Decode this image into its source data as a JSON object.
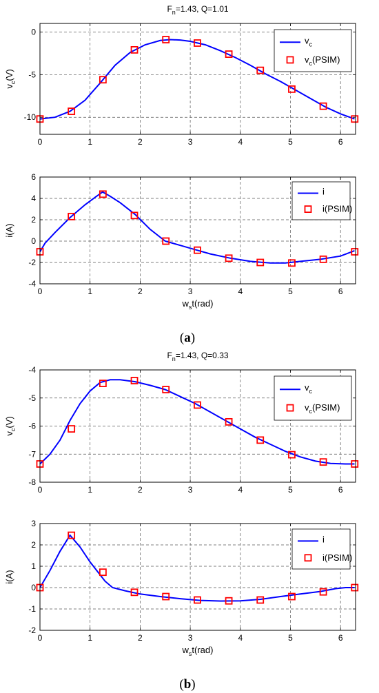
{
  "captions": {
    "a": "a",
    "b": "b"
  },
  "series_style": {
    "line_color": "#0000ff",
    "marker_color": "#ff0000",
    "marker": "square"
  },
  "chart_data": [
    {
      "id": "a-top",
      "type": "line",
      "title_main": "F",
      "title_sub": "n",
      "title_rest": "=1.43, Q=1.01",
      "ylabel_main": "v",
      "ylabel_sub": "c",
      "ylabel_rest": "(V)",
      "xlim": [
        0,
        6.3
      ],
      "ylim": [
        -12,
        1
      ],
      "xticks": [
        0,
        1,
        2,
        3,
        4,
        5,
        6
      ],
      "yticks": [
        0,
        -5,
        -10
      ],
      "grid": true,
      "legend": "top-right",
      "legend_entries": [
        {
          "main": "v",
          "sub": "c",
          "rest": ""
        },
        {
          "main": "v",
          "sub": "c",
          "rest": "(PSIM)"
        }
      ],
      "line": {
        "x": [
          0,
          0.3,
          0.6,
          0.9,
          1.2,
          1.5,
          1.8,
          2.1,
          2.4,
          2.6,
          2.8,
          3.0,
          3.3,
          3.6,
          3.9,
          4.2,
          4.5,
          4.8,
          5.1,
          5.4,
          5.7,
          6.0,
          6.28
        ],
        "y": [
          -10.2,
          -10.0,
          -9.3,
          -8.0,
          -6.0,
          -3.9,
          -2.4,
          -1.5,
          -1.0,
          -0.9,
          -0.95,
          -1.1,
          -1.5,
          -2.2,
          -3.0,
          -3.9,
          -4.9,
          -5.8,
          -6.8,
          -7.8,
          -8.8,
          -9.6,
          -10.2
        ]
      },
      "markers": {
        "x": [
          0,
          0.628,
          1.257,
          1.885,
          2.513,
          3.142,
          3.77,
          4.398,
          5.027,
          5.655,
          6.283
        ],
        "y": [
          -10.2,
          -9.3,
          -5.6,
          -2.1,
          -0.9,
          -1.3,
          -2.6,
          -4.5,
          -6.7,
          -8.7,
          -10.2
        ]
      }
    },
    {
      "id": "a-bottom",
      "type": "line",
      "ylabel_main": "i",
      "ylabel_sub": "",
      "ylabel_rest": "(A)",
      "xlabel_main": "w",
      "xlabel_sub": "s",
      "xlabel_rest": "t(rad)",
      "xlim": [
        0,
        6.3
      ],
      "ylim": [
        -4,
        6
      ],
      "xticks": [
        0,
        1,
        2,
        3,
        4,
        5,
        6
      ],
      "yticks": [
        6,
        4,
        2,
        0,
        -2,
        -4
      ],
      "grid": true,
      "legend": "top-right",
      "legend_entries": [
        {
          "main": "i",
          "sub": "",
          "rest": ""
        },
        {
          "main": "i",
          "sub": "",
          "rest": "(PSIM)"
        }
      ],
      "line": {
        "x": [
          0,
          0.1,
          0.3,
          0.6,
          0.9,
          1.1,
          1.25,
          1.4,
          1.6,
          1.9,
          2.2,
          2.5,
          2.8,
          3.1,
          3.4,
          3.8,
          4.2,
          4.6,
          4.9,
          5.2,
          5.6,
          6.0,
          6.28
        ],
        "y": [
          -1.0,
          -0.2,
          0.8,
          2.2,
          3.4,
          4.1,
          4.6,
          4.2,
          3.6,
          2.5,
          1.1,
          0.0,
          -0.4,
          -0.8,
          -1.2,
          -1.6,
          -1.9,
          -2.05,
          -2.05,
          -1.9,
          -1.7,
          -1.4,
          -0.9
        ]
      },
      "markers": {
        "x": [
          0,
          0.628,
          1.257,
          1.885,
          2.513,
          3.142,
          3.77,
          4.398,
          5.027,
          5.655,
          6.283
        ],
        "y": [
          -1.0,
          2.3,
          4.4,
          2.4,
          0.0,
          -0.85,
          -1.6,
          -2.0,
          -2.05,
          -1.7,
          -1.0
        ]
      }
    },
    {
      "id": "b-top",
      "type": "line",
      "title_main": "F",
      "title_sub": "n",
      "title_rest": "=1.43, Q=0.33",
      "ylabel_main": "v",
      "ylabel_sub": "c",
      "ylabel_rest": "(V)",
      "xlim": [
        0,
        6.3
      ],
      "ylim": [
        -8,
        -4
      ],
      "xticks": [
        0,
        1,
        2,
        3,
        4,
        5,
        6
      ],
      "yticks": [
        -4,
        -5,
        -6,
        -7,
        -8
      ],
      "grid": true,
      "legend": "top-right",
      "legend_entries": [
        {
          "main": "v",
          "sub": "c",
          "rest": ""
        },
        {
          "main": "v",
          "sub": "c",
          "rest": "(PSIM)"
        }
      ],
      "line": {
        "x": [
          0,
          0.2,
          0.4,
          0.6,
          0.8,
          1.0,
          1.2,
          1.4,
          1.6,
          1.9,
          2.2,
          2.5,
          2.8,
          3.1,
          3.4,
          3.7,
          4.0,
          4.3,
          4.6,
          4.9,
          5.2,
          5.5,
          5.8,
          6.1,
          6.28
        ],
        "y": [
          -7.35,
          -7.0,
          -6.5,
          -5.8,
          -5.2,
          -4.75,
          -4.45,
          -4.35,
          -4.35,
          -4.42,
          -4.55,
          -4.7,
          -4.95,
          -5.2,
          -5.5,
          -5.8,
          -6.1,
          -6.4,
          -6.65,
          -6.9,
          -7.1,
          -7.25,
          -7.33,
          -7.35,
          -7.35
        ]
      },
      "markers": {
        "x": [
          0,
          0.628,
          1.257,
          1.885,
          2.513,
          3.142,
          3.77,
          4.398,
          5.027,
          5.655,
          6.283
        ],
        "y": [
          -7.35,
          -6.1,
          -4.48,
          -4.38,
          -4.7,
          -5.25,
          -5.85,
          -6.5,
          -7.02,
          -7.28,
          -7.35
        ]
      }
    },
    {
      "id": "b-bottom",
      "type": "line",
      "ylabel_main": "i",
      "ylabel_sub": "",
      "ylabel_rest": "(A)",
      "xlabel_main": "w",
      "xlabel_sub": "s",
      "xlabel_rest": "t(rad)",
      "xlim": [
        0,
        6.3
      ],
      "ylim": [
        -2,
        3
      ],
      "xticks": [
        0,
        1,
        2,
        3,
        4,
        5,
        6
      ],
      "yticks": [
        3,
        2,
        1,
        0,
        -1,
        -2
      ],
      "grid": true,
      "legend": "top-right",
      "legend_entries": [
        {
          "main": "i",
          "sub": "",
          "rest": ""
        },
        {
          "main": "i",
          "sub": "",
          "rest": "(PSIM)"
        }
      ],
      "line": {
        "x": [
          0,
          0.2,
          0.4,
          0.6,
          0.8,
          1.0,
          1.2,
          1.3,
          1.45,
          1.7,
          2.0,
          2.4,
          2.8,
          3.2,
          3.6,
          4.0,
          4.4,
          4.8,
          5.2,
          5.6,
          5.9,
          6.1,
          6.28
        ],
        "y": [
          0.0,
          0.8,
          1.7,
          2.45,
          1.9,
          1.2,
          0.6,
          0.3,
          0.0,
          -0.15,
          -0.3,
          -0.42,
          -0.52,
          -0.6,
          -0.63,
          -0.62,
          -0.55,
          -0.42,
          -0.3,
          -0.18,
          -0.05,
          0.0,
          0.0
        ]
      },
      "markers": {
        "x": [
          0,
          0.628,
          1.257,
          1.885,
          2.513,
          3.142,
          3.77,
          4.398,
          5.027,
          5.655,
          6.283
        ],
        "y": [
          0.0,
          2.45,
          0.72,
          -0.22,
          -0.42,
          -0.58,
          -0.62,
          -0.58,
          -0.42,
          -0.2,
          0.0
        ]
      }
    }
  ]
}
